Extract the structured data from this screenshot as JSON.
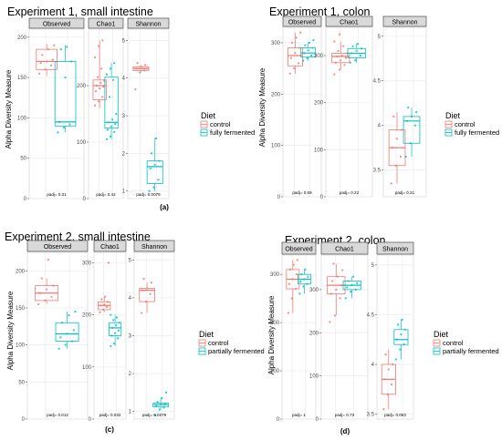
{
  "figure": {
    "y_axis_label": "Alpha Diversity Measure",
    "legend_title": "Diet",
    "colors": {
      "control": "#F8766D",
      "treatment": "#00BFC4",
      "strip_bg": "#d9d9d9",
      "grid": "#ebebeb"
    }
  },
  "chart_data": [
    {
      "type": "box",
      "tag": "(a)",
      "title": "Experiment 1, small intestine",
      "ylabel": "Alpha Diversity Measure",
      "legend": {
        "title": "Diet",
        "entries": [
          "control",
          "fully fermented"
        ]
      },
      "facets": [
        {
          "name": "Observed",
          "ylim": [
            0,
            210
          ],
          "ticks": [
            0,
            50,
            100,
            150,
            200
          ],
          "pval": "padj= 0.31",
          "boxes": [
            {
              "group": "control",
              "whislo": 152,
              "q1": 160,
              "med": 170,
              "q3": 185,
              "whishi": 192,
              "points": [
                155,
                160,
                165,
                168,
                170,
                172,
                178,
                185,
                190
              ]
            },
            {
              "group": "fully fermented",
              "whislo": 82,
              "q1": 90,
              "med": 95,
              "q3": 170,
              "whishi": 190,
              "points": [
                82,
                88,
                92,
                95,
                150,
                170,
                185,
                188
              ]
            }
          ]
        },
        {
          "name": "Chao1",
          "ylim": [
            0,
            300
          ],
          "ticks": [
            0,
            100,
            200
          ],
          "pval": "padj= 0.42",
          "boxes": [
            {
              "group": "control",
              "whislo": 160,
              "q1": 175,
              "med": 200,
              "q3": 210,
              "whishi": 280,
              "points": [
                165,
                172,
                180,
                190,
                195,
                198,
                200,
                205,
                208,
                215,
                230,
                250,
                270,
                280
              ]
            },
            {
              "group": "fully fermented",
              "whislo": 105,
              "q1": 125,
              "med": 135,
              "q3": 215,
              "whishi": 240,
              "points": [
                105,
                110,
                118,
                122,
                128,
                132,
                135,
                140,
                150,
                180,
                210,
                220,
                230,
                240
              ]
            }
          ]
        },
        {
          "name": "Shannon",
          "ylim": [
            0.8,
            5.3
          ],
          "ticks": [
            1,
            2,
            3,
            4,
            5
          ],
          "pval": "padj= 0.0079",
          "boxes": [
            {
              "group": "control",
              "whislo": 4.15,
              "q1": 4.2,
              "med": 4.25,
              "q3": 4.3,
              "whishi": 4.35,
              "points": [
                3.7,
                4.15,
                4.2,
                4.25,
                4.3,
                4.35,
                4.4
              ]
            },
            {
              "group": "fully fermented",
              "whislo": 1.0,
              "q1": 1.2,
              "med": 1.65,
              "q3": 1.8,
              "whishi": 2.4,
              "points": [
                1.0,
                1.1,
                1.3,
                1.6,
                1.7,
                1.8,
                2.0,
                2.4
              ]
            }
          ]
        }
      ]
    },
    {
      "type": "box",
      "tag": "",
      "title": "Experiment 1, colon",
      "ylabel": "Alpha Diversity Measure",
      "legend": {
        "title": "Diet",
        "entries": [
          "control",
          "fully fermented"
        ]
      },
      "facets": [
        {
          "name": "Observed",
          "ylim": [
            0,
            330
          ],
          "ticks": [
            0,
            100,
            200,
            300
          ],
          "pval": "padj= 0.69",
          "boxes": [
            {
              "group": "control",
              "whislo": 240,
              "q1": 255,
              "med": 275,
              "q3": 290,
              "whishi": 320,
              "points": [
                240,
                250,
                260,
                270,
                280,
                290,
                300,
                310,
                320
              ]
            },
            {
              "group": "fully fermented",
              "whislo": 265,
              "q1": 272,
              "med": 280,
              "q3": 290,
              "whishi": 300,
              "points": [
                265,
                270,
                275,
                280,
                285,
                290,
                295,
                300,
                305
              ]
            }
          ]
        },
        {
          "name": "Chao1",
          "ylim": [
            0,
            360
          ],
          "ticks": [
            0,
            100,
            200,
            300
          ],
          "pval": "padj= 0.22",
          "boxes": [
            {
              "group": "control",
              "whislo": 270,
              "q1": 285,
              "med": 298,
              "q3": 305,
              "whishi": 330,
              "points": [
                260,
                270,
                280,
                285,
                290,
                295,
                298,
                300,
                305,
                310,
                320,
                330,
                345
              ]
            },
            {
              "group": "fully fermented",
              "whislo": 285,
              "q1": 295,
              "med": 305,
              "q3": 315,
              "whishi": 325,
              "points": [
                285,
                290,
                300,
                305,
                310,
                315,
                320,
                325
              ]
            }
          ]
        },
        {
          "name": "Shannon",
          "ylim": [
            3.2,
            5.1
          ],
          "ticks": [
            3.5,
            4.0,
            4.5,
            5.0
          ],
          "pval": "padj= 0.31",
          "boxes": [
            {
              "group": "control",
              "whislo": 3.35,
              "q1": 3.55,
              "med": 3.75,
              "q3": 3.95,
              "whishi": 4.15,
              "points": [
                3.35,
                3.55,
                3.65,
                3.75,
                3.85,
                3.95,
                4.1
              ]
            },
            {
              "group": "fully fermented",
              "whislo": 3.65,
              "q1": 3.8,
              "med": 4.05,
              "q3": 4.1,
              "whishi": 4.2,
              "points": [
                3.65,
                3.8,
                4.0,
                4.05,
                4.1,
                4.15,
                4.2
              ]
            }
          ]
        }
      ]
    },
    {
      "type": "box",
      "tag": "(c)",
      "title": "Experiment 2, small intestine",
      "ylabel": "Alpha Diversity Measure",
      "legend": {
        "title": "Diet",
        "entries": [
          "control",
          "partially fermented"
        ]
      },
      "facets": [
        {
          "name": "Observed",
          "ylim": [
            0,
            225
          ],
          "ticks": [
            0,
            50,
            100,
            150,
            200
          ],
          "pval": "padj= 0.012",
          "boxes": [
            {
              "group": "control",
              "whislo": 155,
              "q1": 160,
              "med": 170,
              "q3": 180,
              "whishi": 190,
              "points": [
                155,
                160,
                165,
                170,
                175,
                180,
                190,
                215
              ]
            },
            {
              "group": "partially fermented",
              "whislo": 95,
              "q1": 105,
              "med": 115,
              "q3": 130,
              "whishi": 145,
              "points": [
                95,
                100,
                105,
                110,
                115,
                120,
                130,
                140,
                145
              ]
            }
          ]
        },
        {
          "name": "Chao1",
          "ylim": [
            0,
            320
          ],
          "ticks": [
            0,
            100,
            200,
            300
          ],
          "pval": "padj= 0.032",
          "boxes": [
            {
              "group": "control",
              "whislo": 205,
              "q1": 210,
              "med": 218,
              "q3": 225,
              "whishi": 235,
              "points": [
                205,
                210,
                215,
                218,
                220,
                225,
                230,
                235,
                300
              ]
            },
            {
              "group": "partially fermented",
              "whislo": 140,
              "q1": 160,
              "med": 175,
              "q3": 185,
              "whishi": 200,
              "points": [
                140,
                145,
                155,
                160,
                165,
                170,
                175,
                180,
                185,
                190,
                195,
                200
              ]
            }
          ]
        },
        {
          "name": "Shannon",
          "ylim": [
            0.8,
            5.2
          ],
          "ticks": [
            1,
            2,
            3,
            4,
            5
          ],
          "pval": "padj= 0.0079",
          "boxes": [
            {
              "group": "control",
              "whislo": 3.6,
              "q1": 3.9,
              "med": 4.2,
              "q3": 4.25,
              "whishi": 4.4,
              "points": [
                3.6,
                3.9,
                4.1,
                4.2,
                4.25,
                4.4,
                4.5
              ]
            },
            {
              "group": "partially fermented",
              "whislo": 1.05,
              "q1": 1.12,
              "med": 1.18,
              "q3": 1.22,
              "whishi": 1.35,
              "points": [
                0.9,
                1.05,
                1.1,
                1.15,
                1.18,
                1.2,
                1.25,
                1.35,
                1.5
              ]
            }
          ]
        }
      ]
    },
    {
      "type": "box",
      "tag": "(d)",
      "title": "Experiment 2, colon",
      "ylabel": "Alpha Diversity Measure",
      "legend": {
        "title": "Diet",
        "entries": [
          "control",
          "partially fermented"
        ]
      },
      "facets": [
        {
          "name": "Observed",
          "ylim": [
            0,
            340
          ],
          "ticks": [
            0,
            100,
            200,
            300
          ],
          "pval": "padj= 1",
          "boxes": [
            {
              "group": "control",
              "whislo": 220,
              "q1": 270,
              "med": 290,
              "q3": 310,
              "whishi": 330,
              "points": [
                220,
                250,
                270,
                280,
                290,
                300,
                310,
                320,
                330
              ]
            },
            {
              "group": "partially fermented",
              "whislo": 260,
              "q1": 280,
              "med": 290,
              "q3": 300,
              "whishi": 310,
              "points": [
                260,
                275,
                280,
                285,
                290,
                295,
                300,
                310
              ]
            }
          ]
        },
        {
          "name": "Chao1",
          "ylim": [
            0,
            380
          ],
          "ticks": [
            0,
            100,
            200,
            300
          ],
          "pval": "padj= 0.73",
          "boxes": [
            {
              "group": "control",
              "whislo": 240,
              "q1": 290,
              "med": 310,
              "q3": 330,
              "whishi": 360,
              "points": [
                225,
                240,
                280,
                290,
                300,
                310,
                320,
                330,
                345,
                360
              ]
            },
            {
              "group": "partially fermented",
              "whislo": 280,
              "q1": 300,
              "med": 310,
              "q3": 320,
              "whishi": 330,
              "points": [
                280,
                295,
                300,
                305,
                310,
                315,
                320,
                330
              ]
            }
          ]
        },
        {
          "name": "Shannon",
          "ylim": [
            3.45,
            5.1
          ],
          "ticks": [
            3.5,
            4.0,
            4.5,
            5.0
          ],
          "pval": "padj= 0.063",
          "boxes": [
            {
              "group": "control",
              "whislo": 3.55,
              "q1": 3.7,
              "med": 3.85,
              "q3": 4.0,
              "whishi": 4.15,
              "points": [
                3.55,
                3.7,
                3.8,
                3.85,
                3.95,
                4.0,
                4.1
              ]
            },
            {
              "group": "partially fermented",
              "whislo": 4.05,
              "q1": 4.2,
              "med": 4.25,
              "q3": 4.35,
              "whishi": 4.45,
              "points": [
                4.05,
                4.15,
                4.2,
                4.25,
                4.3,
                4.35,
                4.4,
                4.45
              ]
            }
          ]
        }
      ]
    }
  ]
}
